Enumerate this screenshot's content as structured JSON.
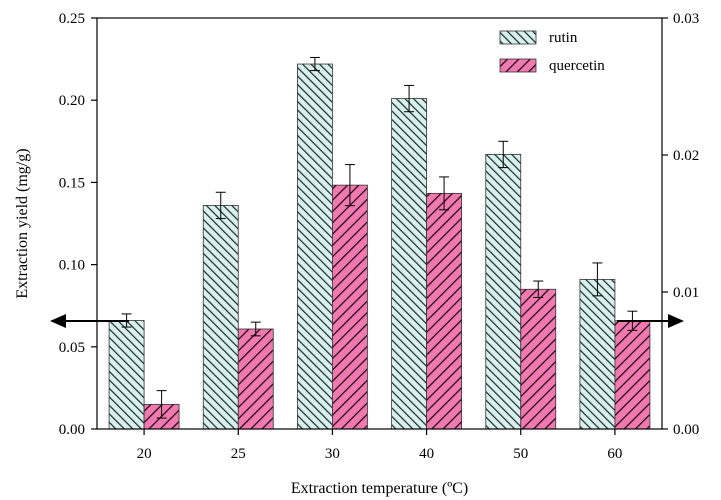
{
  "chart_data": {
    "type": "bar",
    "categories": [
      "20",
      "25",
      "30",
      "40",
      "50",
      "60"
    ],
    "xlabel": "Extraction temperature (ºC)",
    "ylabel": "Extraction yield (mg/g)",
    "ylim": [
      0,
      0.25
    ],
    "y_ticks": [
      "0.00",
      "0.05",
      "0.10",
      "0.15",
      "0.20",
      "0.25"
    ],
    "y2lim": [
      0,
      0.03
    ],
    "y2_ticks": [
      "0.00",
      "0.01",
      "0.02",
      "0.03"
    ],
    "legend_position": "top-right",
    "series": [
      {
        "name": "rutin",
        "axis": "left",
        "values": [
          0.066,
          0.136,
          0.222,
          0.201,
          0.167,
          0.091
        ],
        "errors": [
          0.004,
          0.008,
          0.004,
          0.008,
          0.008,
          0.01
        ],
        "color": "#d8f0ee",
        "hatch_color": "#1a2b2a"
      },
      {
        "name": "quercetin",
        "axis": "right",
        "values": [
          0.0018,
          0.0073,
          0.0178,
          0.0172,
          0.0102,
          0.0079
        ],
        "errors": [
          0.001,
          0.0005,
          0.0015,
          0.0012,
          0.0006,
          0.0007
        ],
        "color": "#f07ab0",
        "hatch_color": "#2a0a18"
      }
    ]
  }
}
